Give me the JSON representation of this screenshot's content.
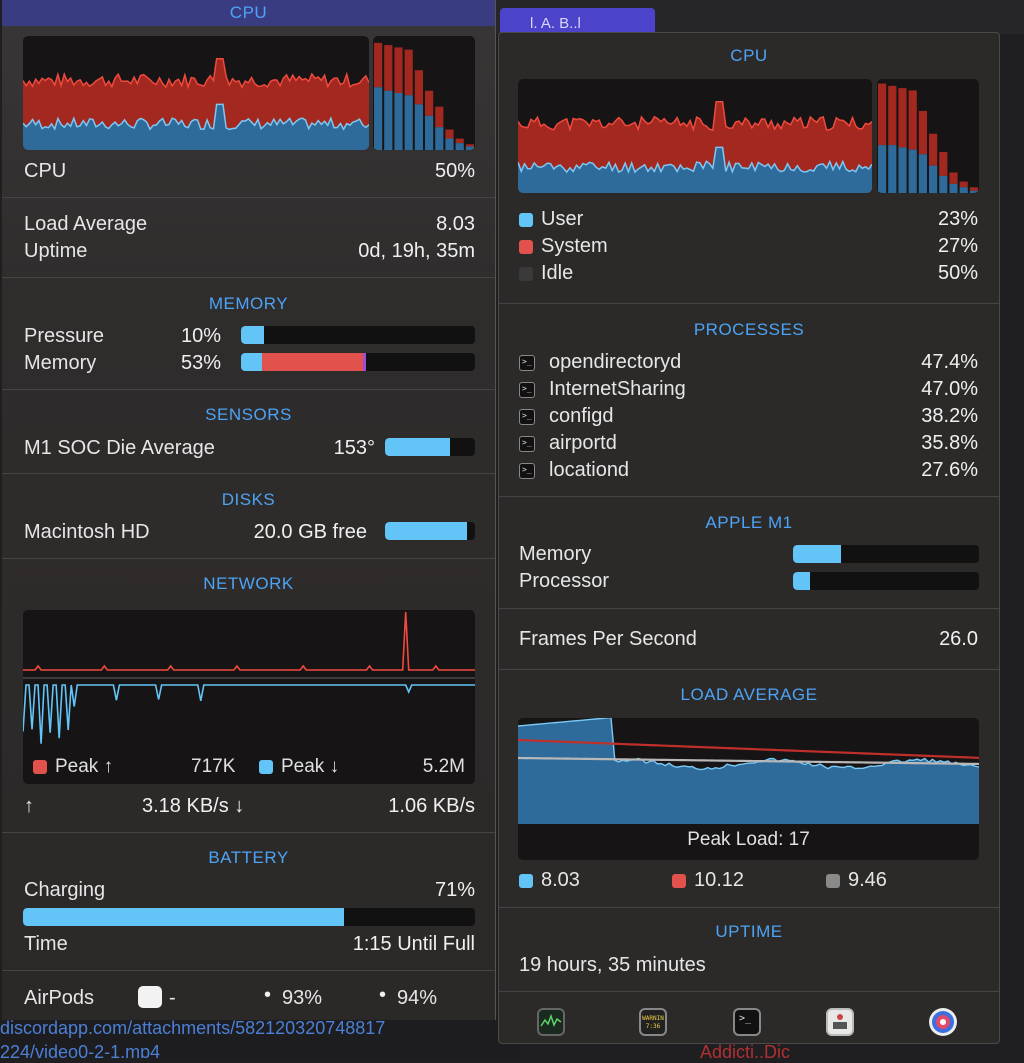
{
  "background": {
    "tab_label": "l. A. B..l",
    "link_text": "discordapp.com/attachments/582120320748817",
    "link_text2": "224/video0-2-1.mp4",
    "bottom_right": "Addicti..Dic"
  },
  "left": {
    "cpu": {
      "title": "CPU",
      "label": "CPU",
      "value": "50%",
      "load_label": "Load Average",
      "load_value": "8.03",
      "uptime_label": "Uptime",
      "uptime_value": "0d, 19h, 35m",
      "history_bars": [
        {
          "user": 0.55,
          "total": 0.94
        },
        {
          "user": 0.52,
          "total": 0.92
        },
        {
          "user": 0.5,
          "total": 0.9
        },
        {
          "user": 0.48,
          "total": 0.88
        },
        {
          "user": 0.4,
          "total": 0.7
        },
        {
          "user": 0.3,
          "total": 0.52
        },
        {
          "user": 0.2,
          "total": 0.38
        },
        {
          "user": 0.1,
          "total": 0.18
        },
        {
          "user": 0.06,
          "total": 0.1
        },
        {
          "user": 0.03,
          "total": 0.05
        }
      ]
    },
    "memory": {
      "title": "MEMORY",
      "pressure_label": "Pressure",
      "pressure_value": "10%",
      "pressure_fraction": 0.1,
      "memory_label": "Memory",
      "memory_value": "53%",
      "memory_segments": [
        {
          "color": "#62c4f7",
          "fraction": 0.09
        },
        {
          "color": "#e2524c",
          "fraction": 0.43
        },
        {
          "color": "#a24bd6",
          "fraction": 0.015
        }
      ]
    },
    "sensors": {
      "title": "SENSORS",
      "label": "M1 SOC Die Average",
      "value": "153°",
      "fraction": 0.72
    },
    "disks": {
      "title": "DISKS",
      "label": "Macintosh HD",
      "value": "20.0 GB free",
      "fraction": 0.91
    },
    "network": {
      "title": "NETWORK",
      "peak_up_label": "Peak ↑",
      "peak_up_value": "717K",
      "peak_down_label": "Peak ↓",
      "peak_down_value": "5.2M",
      "up_arrow": "↑",
      "up_rate": "3.18 KB/s",
      "down_arrow": "↓",
      "down_rate": "1.06 KB/s"
    },
    "battery": {
      "title": "BATTERY",
      "charging_label": "Charging",
      "charging_value": "71%",
      "fraction": 0.71,
      "time_label": "Time",
      "time_value": "1:15 Until Full"
    },
    "airpods": {
      "label": "AirPods",
      "case_value": "-",
      "left_value": "93%",
      "right_value": "94%"
    }
  },
  "right": {
    "cpu": {
      "title": "CPU",
      "user_label": "User",
      "user_value": "23%",
      "system_label": "System",
      "system_value": "27%",
      "idle_label": "Idle",
      "idle_value": "50%",
      "history_bars": [
        {
          "user": 0.42,
          "total": 0.96
        },
        {
          "user": 0.42,
          "total": 0.94
        },
        {
          "user": 0.4,
          "total": 0.92
        },
        {
          "user": 0.38,
          "total": 0.9
        },
        {
          "user": 0.34,
          "total": 0.72
        },
        {
          "user": 0.24,
          "total": 0.52
        },
        {
          "user": 0.15,
          "total": 0.36
        },
        {
          "user": 0.08,
          "total": 0.18
        },
        {
          "user": 0.05,
          "total": 0.1
        },
        {
          "user": 0.02,
          "total": 0.05
        }
      ]
    },
    "processes": {
      "title": "PROCESSES",
      "items": [
        {
          "name": "opendirectoryd",
          "value": "47.4%"
        },
        {
          "name": "InternetSharing",
          "value": "47.0%"
        },
        {
          "name": "configd",
          "value": "38.2%"
        },
        {
          "name": "airportd",
          "value": "35.8%"
        },
        {
          "name": "locationd",
          "value": "27.6%"
        }
      ]
    },
    "apple_m1": {
      "title": "APPLE M1",
      "memory_label": "Memory",
      "memory_fraction": 0.26,
      "processor_label": "Processor",
      "processor_fraction": 0.09
    },
    "fps": {
      "label": "Frames Per Second",
      "value": "26.0"
    },
    "load_average": {
      "title": "LOAD AVERAGE",
      "peak_label": "Peak Load: 17",
      "legend": [
        {
          "color": "#62c4f7",
          "value": "8.03"
        },
        {
          "color": "#e2524c",
          "value": "10.12"
        },
        {
          "color": "#8a8a8a",
          "value": "9.46"
        }
      ]
    },
    "uptime": {
      "title": "UPTIME",
      "value": "19 hours, 35 minutes"
    },
    "dock_icons": [
      "activity-monitor-icon",
      "console-icon",
      "terminal-icon",
      "disk-utility-icon",
      "istat-icon"
    ],
    "console_text": "WARNIN 7:36"
  }
}
